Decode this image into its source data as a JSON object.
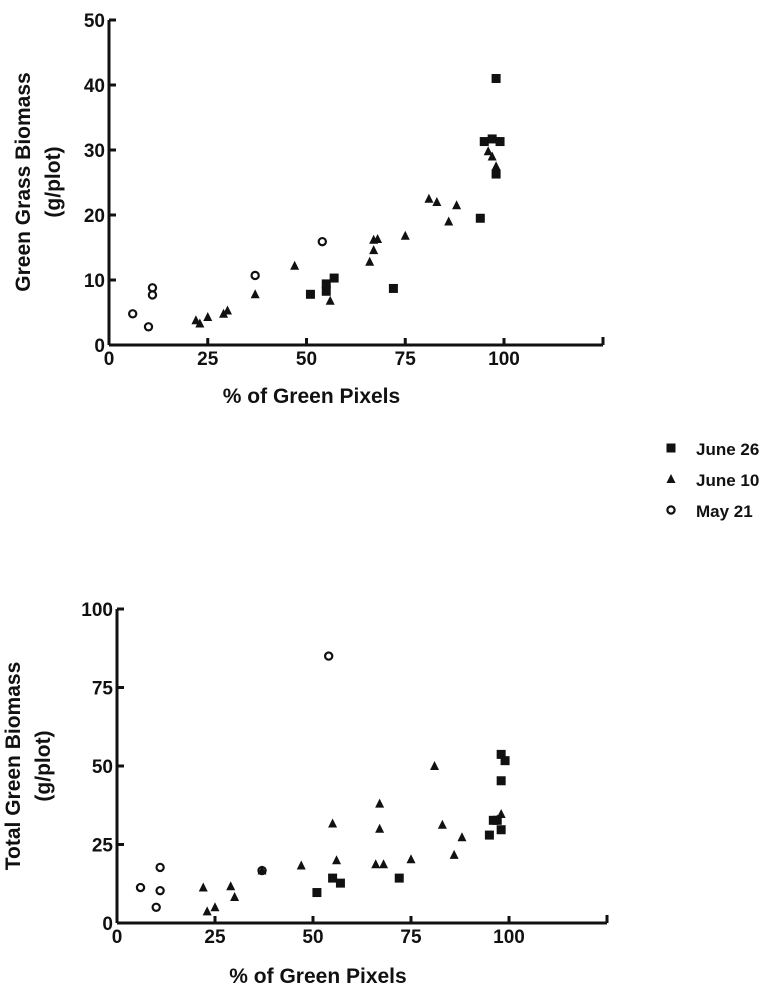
{
  "legend": [
    {
      "key": "june26",
      "label": "June 26",
      "marker": "square"
    },
    {
      "key": "june10",
      "label": "June 10",
      "marker": "triangle"
    },
    {
      "key": "may21",
      "label": "May 21",
      "marker": "circle"
    }
  ],
  "chart_data": [
    {
      "type": "scatter",
      "title": "",
      "xlabel": "% of Green Pixels",
      "ylabel": "Green Grass Biomass (g/plot)",
      "ylabel_lines": [
        "Green Grass Biomass",
        "(g/plot)"
      ],
      "xlim": [
        0,
        125
      ],
      "ylim": [
        0,
        50
      ],
      "xticks": [
        0,
        25,
        50,
        75,
        100
      ],
      "yticks": [
        0,
        10,
        20,
        30,
        40,
        50
      ],
      "grid": false,
      "legend_position": "right, between plots",
      "series": [
        {
          "name": "June 26",
          "marker": "square",
          "points": [
            [
              51,
              7.8
            ],
            [
              55,
              8.3
            ],
            [
              55,
              9.4
            ],
            [
              57,
              10.3
            ],
            [
              72,
              8.7
            ],
            [
              94,
              19.5
            ],
            [
              95,
              31.3
            ],
            [
              97,
              31.7
            ],
            [
              98,
              26.3
            ],
            [
              98,
              41
            ],
            [
              99,
              31.3
            ]
          ]
        },
        {
          "name": "June 10",
          "marker": "triangle",
          "points": [
            [
              22,
              3.8
            ],
            [
              23,
              3.3
            ],
            [
              25,
              4.3
            ],
            [
              29,
              4.8
            ],
            [
              30,
              5.3
            ],
            [
              37,
              7.8
            ],
            [
              47,
              12.2
            ],
            [
              55,
              8.2
            ],
            [
              56,
              6.8
            ],
            [
              66,
              12.8
            ],
            [
              67,
              14.6
            ],
            [
              67,
              16.2
            ],
            [
              68,
              16.3
            ],
            [
              75,
              16.8
            ],
            [
              81,
              22.5
            ],
            [
              83,
              22.0
            ],
            [
              86,
              19.0
            ],
            [
              88,
              21.5
            ],
            [
              96,
              29.8
            ],
            [
              97,
              29.0
            ],
            [
              98,
              27.5
            ],
            [
              98,
              26.5
            ]
          ]
        },
        {
          "name": "May 21",
          "marker": "circle",
          "points": [
            [
              6,
              4.8
            ],
            [
              10,
              2.8
            ],
            [
              11,
              7.7
            ],
            [
              11,
              8.8
            ],
            [
              37,
              10.7
            ],
            [
              54,
              15.9
            ]
          ]
        }
      ]
    },
    {
      "type": "scatter",
      "title": "",
      "xlabel": "% of Green Pixels",
      "ylabel": "Total Green Biomass (g/plot)",
      "ylabel_lines": [
        "Total Green Biomass",
        "(g/plot)"
      ],
      "xlim": [
        0,
        125
      ],
      "ylim": [
        0,
        100
      ],
      "xticks": [
        0,
        25,
        50,
        75,
        100
      ],
      "yticks": [
        0,
        25,
        50,
        75,
        100
      ],
      "grid": false,
      "series": [
        {
          "name": "June 26",
          "marker": "square",
          "points": [
            [
              51,
              9.7
            ],
            [
              55,
              14.3
            ],
            [
              57,
              12.7
            ],
            [
              72,
              14.3
            ],
            [
              95,
              28.0
            ],
            [
              96,
              32.7
            ],
            [
              97,
              32.7
            ],
            [
              98,
              29.7
            ],
            [
              98,
              45.3
            ],
            [
              98,
              53.7
            ],
            [
              99,
              51.7
            ]
          ]
        },
        {
          "name": "June 10",
          "marker": "triangle",
          "points": [
            [
              22,
              11.3
            ],
            [
              23,
              3.7
            ],
            [
              25,
              5.0
            ],
            [
              29,
              11.7
            ],
            [
              30,
              8.3
            ],
            [
              37,
              16.7
            ],
            [
              47,
              18.3
            ],
            [
              55,
              31.7
            ],
            [
              56,
              20.0
            ],
            [
              66,
              18.7
            ],
            [
              67,
              30.0
            ],
            [
              67,
              38.0
            ],
            [
              68,
              18.7
            ],
            [
              75,
              20.3
            ],
            [
              81,
              50.0
            ],
            [
              83,
              31.3
            ],
            [
              86,
              21.7
            ],
            [
              88,
              27.3
            ],
            [
              97,
              33.0
            ],
            [
              98,
              34.7
            ]
          ]
        },
        {
          "name": "May 21",
          "marker": "circle",
          "points": [
            [
              6,
              11.3
            ],
            [
              10,
              5.0
            ],
            [
              11,
              10.3
            ],
            [
              11,
              17.7
            ],
            [
              37,
              16.7
            ],
            [
              54,
              85.0
            ]
          ]
        }
      ]
    }
  ]
}
